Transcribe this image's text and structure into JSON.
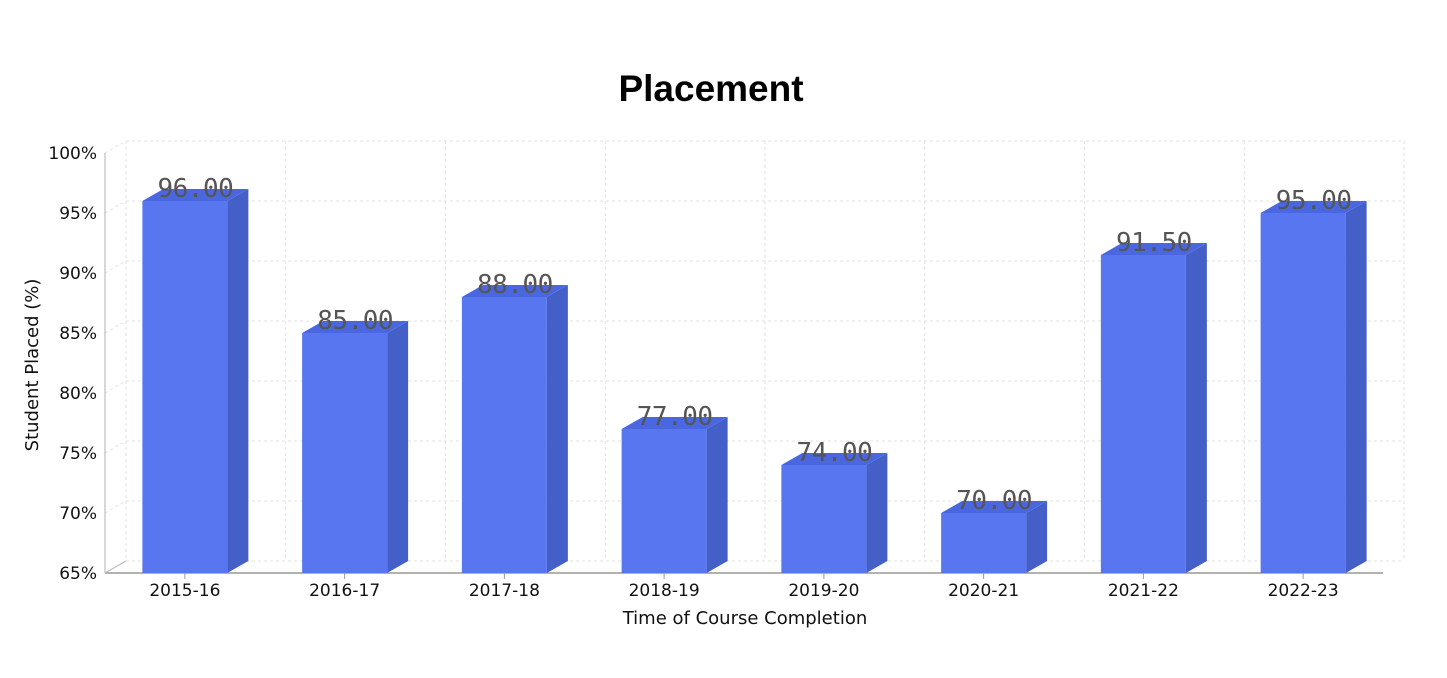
{
  "chart_data": {
    "type": "bar",
    "title": "Placement",
    "xlabel": "Time of Course Completion",
    "ylabel": "Student Placed (%)",
    "categories": [
      "2015-16",
      "2016-17",
      "2017-18",
      "2018-19",
      "2019-20",
      "2020-21",
      "2021-22",
      "2022-23"
    ],
    "values": [
      96.0,
      85.0,
      88.0,
      77.0,
      74.0,
      70.0,
      91.5,
      95.0
    ],
    "value_labels": [
      "96.00",
      "85.00",
      "88.00",
      "77.00",
      "74.00",
      "70.00",
      "91.50",
      "95.00"
    ],
    "ylim": [
      65,
      100
    ],
    "yticks": [
      65,
      70,
      75,
      80,
      85,
      90,
      95,
      100
    ],
    "ytick_labels": [
      "65%",
      "70%",
      "75%",
      "80%",
      "85%",
      "90%",
      "95%",
      "100%"
    ],
    "grid": true,
    "style": "3d",
    "colors": {
      "bar_front": "#5876f0",
      "bar_side": "#4460c8",
      "bar_top": "#4a67e0",
      "grid": "#e2e2e2"
    }
  }
}
